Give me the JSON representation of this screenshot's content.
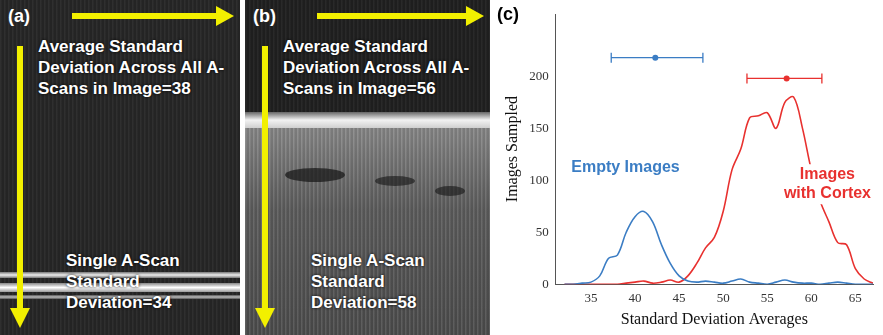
{
  "panels": {
    "a": {
      "letter": "(a)",
      "image_text": "Average Standard Deviation Across All A-Scans in Image=38",
      "scan_text": "Single A-Scan Standard Deviation=34"
    },
    "b": {
      "letter": "(b)",
      "image_text": "Average Standard Deviation Across All A-Scans in Image=56",
      "scan_text": "Single A-Scan Standard Deviation=58"
    }
  },
  "chart_data": {
    "letter": "(c)",
    "type": "line",
    "x_label": "Standard Deviation Averages",
    "y_label": "Images Sampled",
    "x": [
      32,
      33,
      34,
      35,
      36,
      37,
      38,
      39,
      40,
      41,
      42,
      43,
      44,
      45,
      46,
      47,
      48,
      49,
      50,
      51,
      52,
      53,
      54,
      55,
      56,
      57,
      58,
      59,
      60,
      61,
      62,
      63,
      64,
      65,
      66,
      67
    ],
    "series": [
      {
        "name": "Empty Images",
        "color": "#3b7dc4",
        "values": [
          0,
          0,
          1,
          2,
          8,
          25,
          28,
          50,
          65,
          70,
          60,
          38,
          20,
          8,
          3,
          2,
          3,
          2,
          1,
          3,
          5,
          2,
          1,
          0,
          2,
          4,
          2,
          1,
          1,
          0,
          1,
          2,
          1,
          0,
          0,
          0
        ],
        "summary": {
          "x": 42.3,
          "y": 218,
          "xmin": 37.3,
          "xmax": 47.7
        }
      },
      {
        "name": "Images with Cortex",
        "color": "#e8312f",
        "values": [
          0,
          0,
          0,
          0,
          0,
          0,
          0,
          1,
          2,
          3,
          1,
          2,
          4,
          2,
          8,
          20,
          35,
          45,
          70,
          110,
          130,
          160,
          162,
          165,
          150,
          175,
          180,
          150,
          110,
          80,
          60,
          40,
          38,
          15,
          5,
          1
        ],
        "summary": {
          "x": 57.2,
          "y": 198,
          "xmin": 52.7,
          "xmax": 61.2
        }
      }
    ],
    "xlim": [
      31,
      67
    ],
    "xticks": [
      35,
      40,
      45,
      50,
      55,
      60,
      65
    ],
    "ylim": [
      0,
      260
    ],
    "yticks": [
      0,
      50,
      100,
      150,
      200
    ],
    "grid": false
  }
}
